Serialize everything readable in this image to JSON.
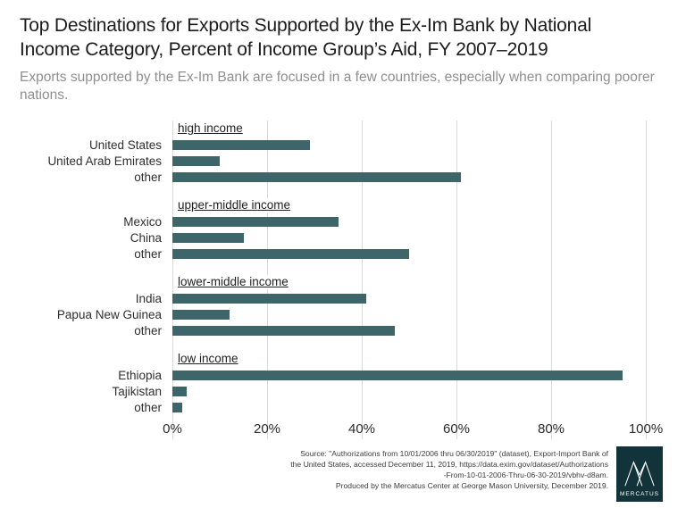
{
  "title": "Top Destinations for Exports Supported by the Ex-Im Bank by National Income Category, Percent of Income Group’s Aid, FY 2007–2019",
  "subtitle": "Exports supported by the Ex-Im Bank are focused in a few countries, especially when comparing poorer nations.",
  "colors": {
    "bar": "#3e6569",
    "grid": "#dadada",
    "logo_background": "#12333a"
  },
  "chart_data": {
    "type": "bar",
    "orientation": "horizontal",
    "title": "Top Destinations for Exports Supported by the Ex-Im Bank by National Income Category, Percent of Income Group’s Aid, FY 2007–2019",
    "xlabel": "",
    "ylabel": "",
    "xlim": [
      0,
      100
    ],
    "x_ticks": [
      "0%",
      "20%",
      "40%",
      "60%",
      "80%",
      "100%"
    ],
    "x_tick_values": [
      0,
      20,
      40,
      60,
      80,
      100
    ],
    "grid": true,
    "groups": [
      {
        "label": "high income",
        "bars": [
          {
            "label": "United States",
            "value": 29
          },
          {
            "label": "United Arab Emirates",
            "value": 10
          },
          {
            "label": "other",
            "value": 61
          }
        ]
      },
      {
        "label": "upper-middle income",
        "bars": [
          {
            "label": "Mexico",
            "value": 35
          },
          {
            "label": "China",
            "value": 15
          },
          {
            "label": "other",
            "value": 50
          }
        ]
      },
      {
        "label": "lower-middle income",
        "bars": [
          {
            "label": "India",
            "value": 41
          },
          {
            "label": "Papua New Guinea",
            "value": 12
          },
          {
            "label": "other",
            "value": 47
          }
        ]
      },
      {
        "label": "low income",
        "bars": [
          {
            "label": "Ethiopia",
            "value": 95
          },
          {
            "label": "Tajikistan",
            "value": 3
          },
          {
            "label": "other",
            "value": 2
          }
        ]
      }
    ]
  },
  "footer": {
    "lines": [
      "Source: \"Authorizations from 10/01/2006 thru 06/30/2019\" (dataset), Export-Import Bank of",
      "the United States, accessed December 11, 2019, https://data.exim.gov/dataset/Authorizations",
      "-From-10-01-2006-Thru-06-30-2019/vbhv-d8am.",
      "Produced by the Mercatus Center at George Mason University, December 2019."
    ],
    "logo_text": "MERCATUS"
  }
}
